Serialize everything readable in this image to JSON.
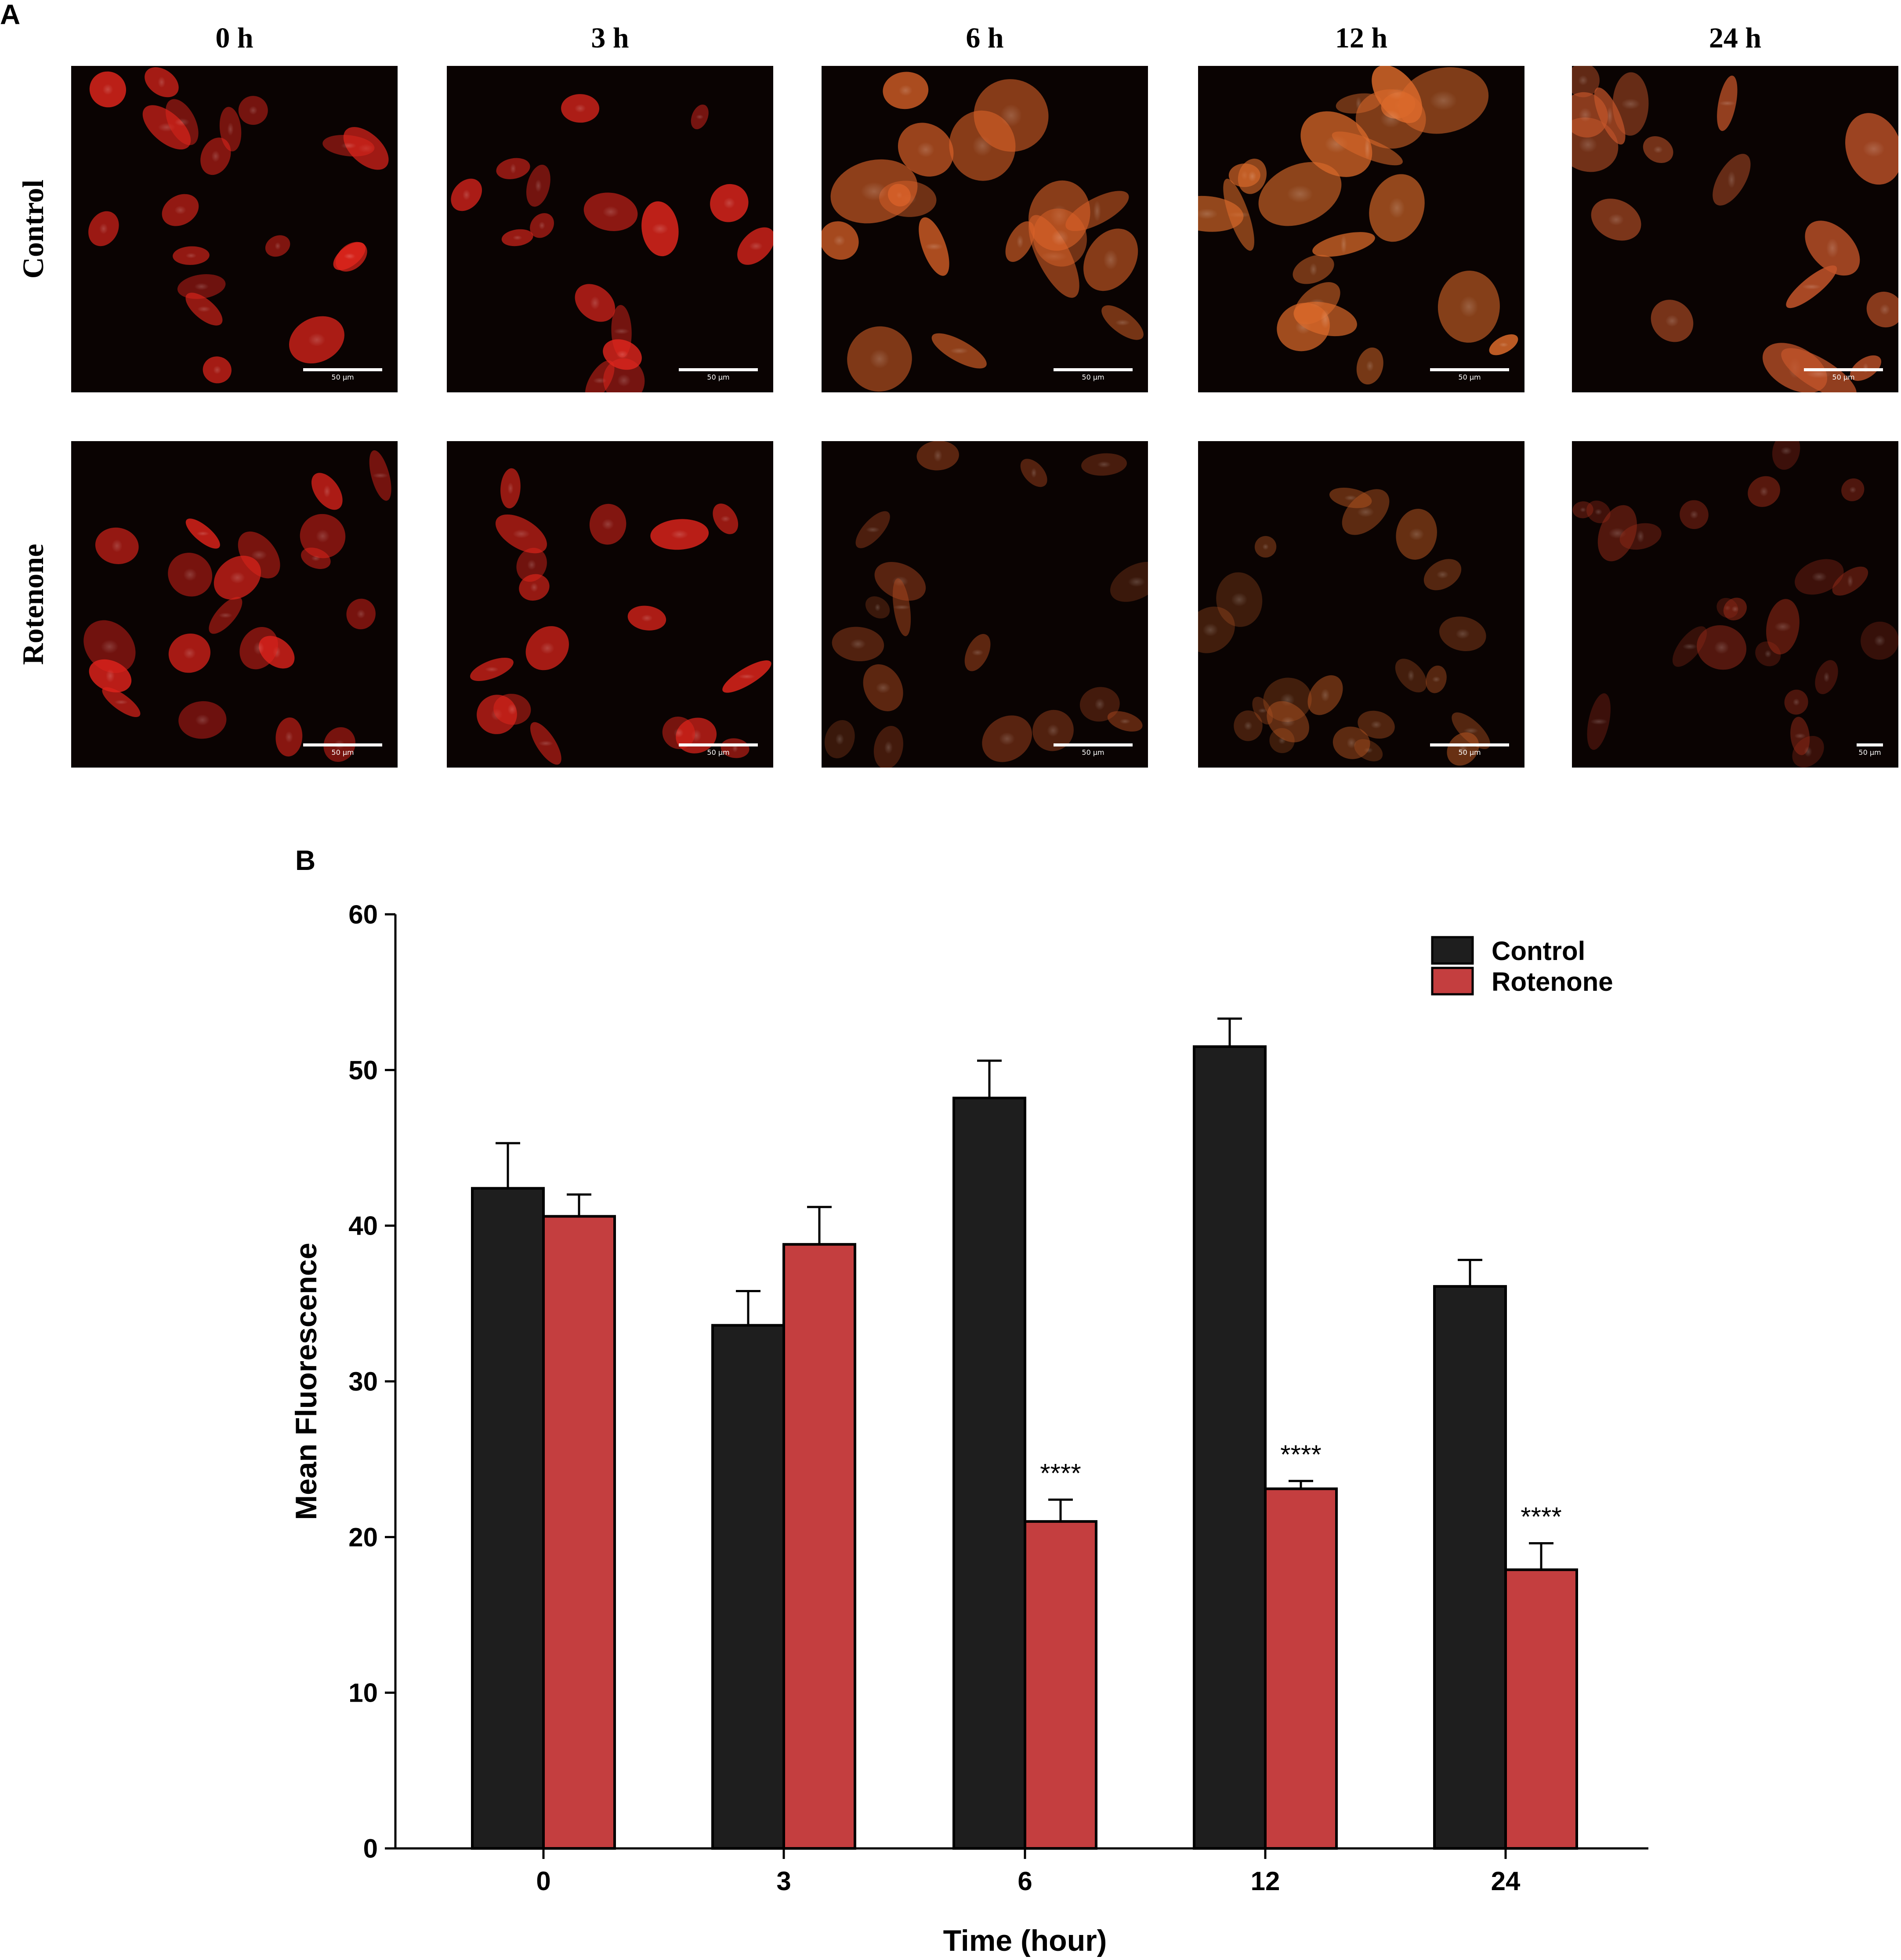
{
  "panel_a": {
    "letter": "A",
    "columns": [
      "0 h",
      "3 h",
      "6 h",
      "12 h",
      "24 h"
    ],
    "rows": [
      "Control",
      "Rotenone"
    ],
    "scale_bar_label": "50 µm",
    "image_tints": [
      [
        "#e0251c",
        "#e0261d",
        "#d96128",
        "#db6a2a",
        "#c4552a"
      ],
      [
        "#dc231b",
        "#e0251c",
        "#a9461f",
        "#b65522",
        "#9c2c19"
      ]
    ]
  },
  "panel_b": {
    "letter": "B"
  },
  "chart_data": {
    "type": "bar",
    "categories": [
      "0",
      "3",
      "6",
      "12",
      "24"
    ],
    "xlabel": "Time (hour)",
    "ylabel": "Mean Fluorescence",
    "ylim": [
      0,
      60
    ],
    "yticks": [
      "0",
      "10",
      "20",
      "30",
      "40",
      "50",
      "60"
    ],
    "legend_position": "top-right",
    "error_bars": true,
    "series": [
      {
        "name": "Control",
        "color": "#1e1e1e",
        "values": [
          42.4,
          33.6,
          48.2,
          51.5,
          36.1
        ],
        "errors": [
          2.9,
          2.2,
          2.4,
          1.8,
          1.7
        ]
      },
      {
        "name": "Rotenone",
        "color": "#c43e3f",
        "values": [
          40.6,
          38.8,
          21.0,
          23.1,
          17.9
        ],
        "errors": [
          1.4,
          2.4,
          1.4,
          0.5,
          1.7
        ]
      }
    ],
    "annotations": [
      {
        "category": "6",
        "series": "Rotenone",
        "text": "****"
      },
      {
        "category": "12",
        "series": "Rotenone",
        "text": "****"
      },
      {
        "category": "24",
        "series": "Rotenone",
        "text": "****"
      }
    ]
  }
}
